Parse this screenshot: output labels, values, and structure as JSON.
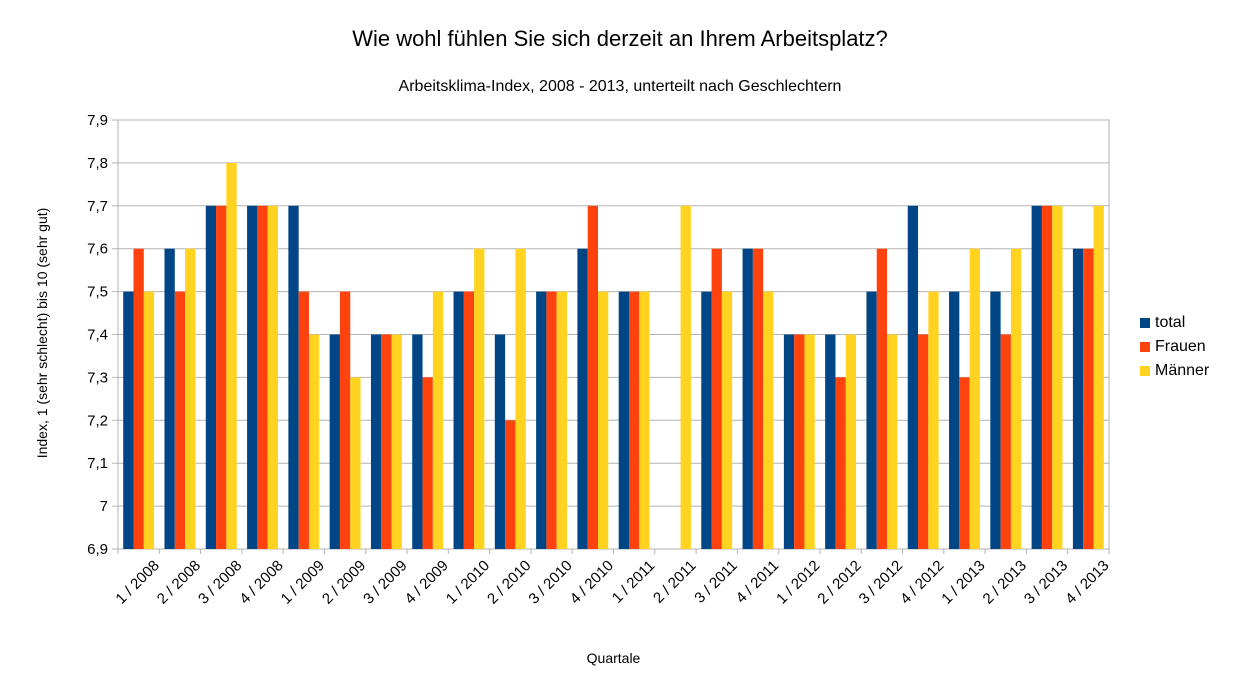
{
  "chart_data": {
    "type": "bar",
    "title": "Wie wohl fühlen Sie sich derzeit an Ihrem Arbeitsplatz?",
    "subtitle": "Arbeitsklima-Index, 2008 - 2013, unterteilt nach Geschlechtern",
    "xlabel": "Quartale",
    "ylabel": "Index, 1 (sehr schlecht) bis 10 (sehr gut)",
    "ylim": [
      6.9,
      7.9
    ],
    "yticks": [
      "6,9",
      "7",
      "7,1",
      "7,2",
      "7,3",
      "7,4",
      "7,5",
      "7,6",
      "7,7",
      "7,8",
      "7,9"
    ],
    "grid": true,
    "legend_position": "right",
    "categories": [
      "1 / 2008",
      "2 / 2008",
      "3 / 2008",
      "4 / 2008",
      "1 / 2009",
      "2 / 2009",
      "3 / 2009",
      "4 / 2009",
      "1 / 2010",
      "2 / 2010",
      "3 / 2010",
      "4 / 2010",
      "1 / 2011",
      "2 / 2011",
      "3 / 2011",
      "4 / 2011",
      "1 / 2012",
      "2 / 2012",
      "3 / 2012",
      "4 / 2012",
      "1 / 2013",
      "2 / 2013",
      "3 / 2013",
      "4 / 2013"
    ],
    "series": [
      {
        "name": "total",
        "color": "#004586",
        "values": [
          7.5,
          7.6,
          7.7,
          7.7,
          7.7,
          7.4,
          7.4,
          7.4,
          7.5,
          7.4,
          7.5,
          7.6,
          7.5,
          null,
          7.5,
          7.6,
          7.4,
          7.4,
          7.5,
          7.7,
          7.5,
          7.5,
          7.7,
          7.6
        ]
      },
      {
        "name": "Frauen",
        "color": "#ff420e",
        "values": [
          7.6,
          7.5,
          7.7,
          7.7,
          7.5,
          7.5,
          7.4,
          7.3,
          7.5,
          7.2,
          7.5,
          7.7,
          7.5,
          null,
          7.6,
          7.6,
          7.4,
          7.3,
          7.6,
          7.4,
          7.3,
          7.4,
          7.7,
          7.6
        ]
      },
      {
        "name": "Männer",
        "color": "#ffd320",
        "values": [
          7.5,
          7.6,
          7.8,
          7.7,
          7.4,
          7.3,
          7.4,
          7.5,
          7.6,
          7.6,
          7.5,
          7.5,
          7.5,
          7.7,
          7.5,
          7.5,
          7.4,
          7.4,
          7.4,
          7.5,
          7.6,
          7.6,
          7.7,
          7.7
        ]
      }
    ]
  }
}
